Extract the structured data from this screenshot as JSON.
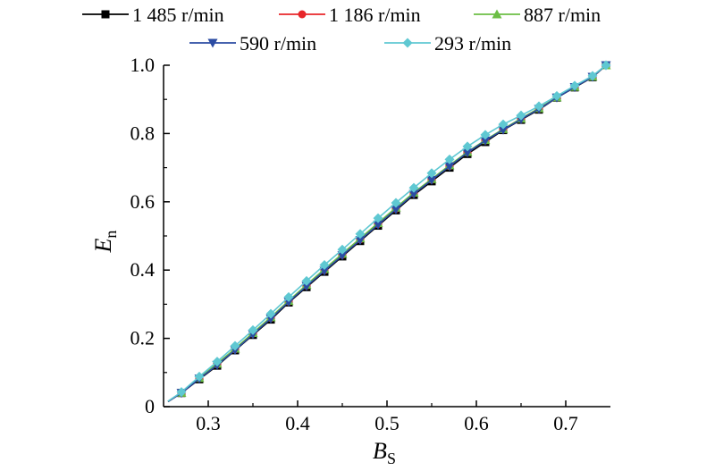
{
  "chart_data": {
    "type": "line",
    "xlabel": {
      "main": "B",
      "sub": "S"
    },
    "ylabel": {
      "main": "E",
      "sub": "n"
    },
    "xlim": [
      0.25,
      0.75
    ],
    "ylim": [
      0,
      1.0
    ],
    "xticks": [
      0.3,
      0.4,
      0.5,
      0.6,
      0.7
    ],
    "xtick_labels": [
      "0.3",
      "0.4",
      "0.5",
      "0.6",
      "0.7"
    ],
    "yticks": [
      0,
      0.2,
      0.4,
      0.6,
      0.8,
      1.0
    ],
    "ytick_labels": [
      "0",
      "0.2",
      "0.4",
      "0.6",
      "0.8",
      "1.0"
    ],
    "grid": false,
    "legend_position": "top",
    "x": [
      0.255,
      0.27,
      0.29,
      0.31,
      0.33,
      0.35,
      0.37,
      0.39,
      0.41,
      0.43,
      0.45,
      0.47,
      0.49,
      0.51,
      0.53,
      0.55,
      0.57,
      0.59,
      0.61,
      0.63,
      0.65,
      0.67,
      0.69,
      0.71,
      0.73,
      0.745
    ],
    "series": [
      {
        "name": "1 485 r/min",
        "color": "#000000",
        "marker": "square",
        "values": [
          0.015,
          0.04,
          0.08,
          0.12,
          0.165,
          0.21,
          0.255,
          0.305,
          0.35,
          0.395,
          0.44,
          0.485,
          0.53,
          0.575,
          0.62,
          0.66,
          0.7,
          0.74,
          0.775,
          0.81,
          0.84,
          0.87,
          0.905,
          0.935,
          0.965,
          1.0
        ]
      },
      {
        "name": "1 186 r/min",
        "color": "#e8262a",
        "marker": "circle",
        "values": [
          0.015,
          0.04,
          0.083,
          0.124,
          0.168,
          0.214,
          0.26,
          0.308,
          0.355,
          0.4,
          0.445,
          0.49,
          0.535,
          0.58,
          0.625,
          0.665,
          0.705,
          0.745,
          0.78,
          0.812,
          0.843,
          0.873,
          0.906,
          0.937,
          0.967,
          1.0
        ]
      },
      {
        "name": "887 r/min",
        "color": "#6cbe45",
        "marker": "triangle-up",
        "values": [
          0.015,
          0.041,
          0.084,
          0.126,
          0.17,
          0.216,
          0.262,
          0.31,
          0.357,
          0.403,
          0.448,
          0.493,
          0.538,
          0.583,
          0.627,
          0.667,
          0.707,
          0.746,
          0.781,
          0.813,
          0.844,
          0.874,
          0.906,
          0.937,
          0.967,
          1.0
        ]
      },
      {
        "name": "590 r/min",
        "color": "#2b4ca3",
        "marker": "triangle-down",
        "values": [
          0.015,
          0.04,
          0.082,
          0.122,
          0.166,
          0.212,
          0.258,
          0.307,
          0.353,
          0.398,
          0.443,
          0.488,
          0.533,
          0.578,
          0.623,
          0.664,
          0.704,
          0.744,
          0.779,
          0.811,
          0.842,
          0.872,
          0.905,
          0.936,
          0.966,
          1.0
        ]
      },
      {
        "name": "293 r/min",
        "color": "#5fc8d2",
        "marker": "diamond",
        "values": [
          0.016,
          0.043,
          0.088,
          0.132,
          0.178,
          0.224,
          0.272,
          0.321,
          0.368,
          0.415,
          0.46,
          0.506,
          0.552,
          0.597,
          0.641,
          0.684,
          0.724,
          0.762,
          0.796,
          0.827,
          0.853,
          0.88,
          0.91,
          0.94,
          0.969,
          1.0
        ]
      }
    ]
  }
}
